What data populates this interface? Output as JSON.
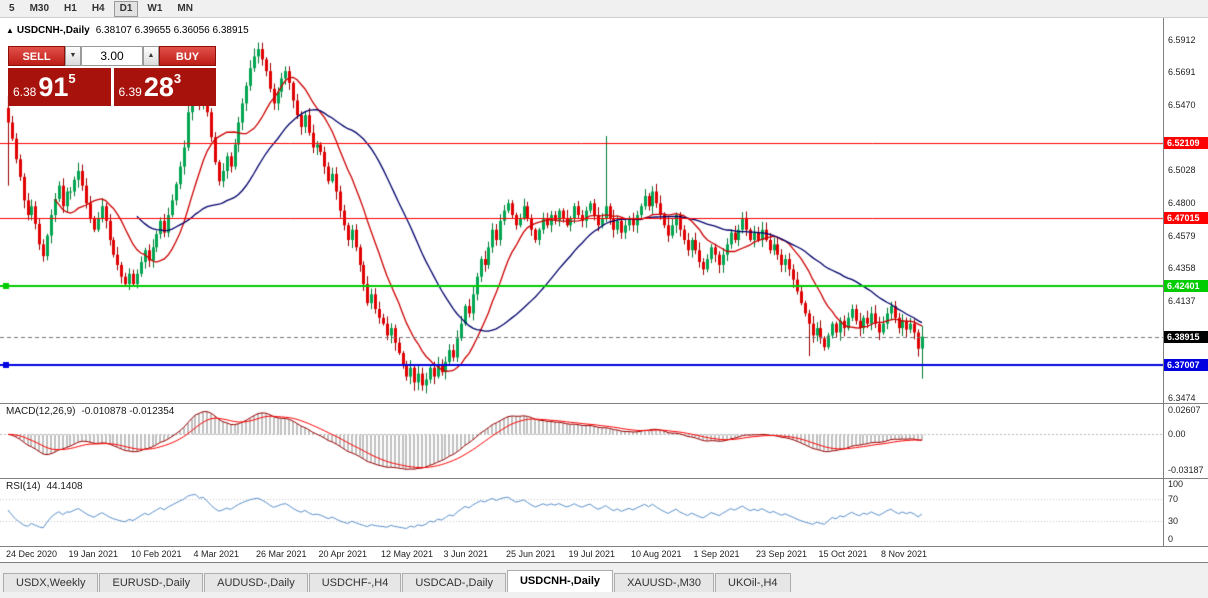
{
  "toolbar": {
    "timeframes": [
      "5",
      "M30",
      "H1",
      "H4",
      "D1",
      "W1",
      "MN"
    ],
    "active": "D1"
  },
  "icons": {
    "collapse_triangle": "▲",
    "spinner_down": "▼",
    "spinner_up": "▲"
  },
  "chart": {
    "symbol_label": "USDCNH-,Daily",
    "ohlc_label": "6.38107 6.39655 6.36056 6.38915",
    "trade_panel": {
      "sell_label": "SELL",
      "buy_label": "BUY",
      "volume": "3.00",
      "sell_price_small": "6.38",
      "sell_price_big": "91",
      "sell_price_sup": "5",
      "buy_price_small": "6.39",
      "buy_price_big": "28",
      "buy_price_sup": "3"
    },
    "price_axis": {
      "ticks": [
        {
          "label": "6.5912",
          "price": 6.5912
        },
        {
          "label": "6.5691",
          "price": 6.5691
        },
        {
          "label": "6.5470",
          "price": 6.547
        },
        {
          "label": "6.5028",
          "price": 6.5028
        },
        {
          "label": "6.4800",
          "price": 6.48
        },
        {
          "label": "6.4579",
          "price": 6.4579
        },
        {
          "label": "6.4358",
          "price": 6.4358
        },
        {
          "label": "6.4137",
          "price": 6.4137
        },
        {
          "label": "6.3474",
          "price": 6.3474
        }
      ]
    },
    "levels": [
      {
        "label": "6.52109",
        "price": 6.52109,
        "color": "#FF0000",
        "width": 1,
        "handle": false
      },
      {
        "label": "6.47015",
        "price": 6.47015,
        "color": "#FF0000",
        "width": 1,
        "handle": false
      },
      {
        "label": "6.42401",
        "price": 6.42401,
        "color": "#00CC00",
        "width": 2,
        "handle": true
      },
      {
        "label": "6.37007",
        "price": 6.37007,
        "color": "#0000E0",
        "width": 2,
        "handle": true
      }
    ],
    "current_price": {
      "label": "6.38915",
      "price": 6.38915,
      "color": "#000000"
    }
  },
  "macd": {
    "label": "MACD(12,26,9)",
    "values_label": "-0.010878 -0.012354",
    "axis": [
      "0.02607",
      "0.00",
      "-0.03187"
    ]
  },
  "rsi": {
    "label": "RSI(14)",
    "value_label": "44.1408",
    "axis": [
      "100",
      "70",
      "30",
      "0"
    ],
    "levels": [
      70,
      30
    ]
  },
  "tabs": [
    {
      "label": "USDX,Weekly",
      "active": false
    },
    {
      "label": "EURUSD-,Daily",
      "active": false
    },
    {
      "label": "AUDUSD-,Daily",
      "active": false
    },
    {
      "label": "USDCHF-,H4",
      "active": false
    },
    {
      "label": "USDCAD-,Daily",
      "active": false
    },
    {
      "label": "USDCNH-,Daily",
      "active": true
    },
    {
      "label": "XAUUSD-,M30",
      "active": false
    },
    {
      "label": "UKOil-,H4",
      "active": false
    }
  ],
  "chart_data": {
    "type": "candlestick",
    "symbol": "USDCNH",
    "timeframe": "Daily",
    "ylim": [
      6.3474,
      6.5912
    ],
    "x_labels": [
      "24 Dec 2020",
      "19 Jan 2021",
      "10 Feb 2021",
      "4 Mar 2021",
      "26 Mar 2021",
      "20 Apr 2021",
      "12 May 2021",
      "3 Jun 2021",
      "25 Jun 2021",
      "19 Jul 2021",
      "10 Aug 2021",
      "1 Sep 2021",
      "23 Sep 2021",
      "15 Oct 2021",
      "8 Nov 2021"
    ],
    "candles_per_label": 16,
    "first_open": 6.545,
    "closes": [
      6.535,
      6.524,
      6.51,
      6.498,
      6.482,
      6.472,
      6.478,
      6.466,
      6.452,
      6.444,
      6.458,
      6.472,
      6.483,
      6.492,
      6.478,
      6.488,
      6.488,
      6.496,
      6.502,
      6.492,
      6.48,
      6.47,
      6.462,
      6.47,
      6.478,
      6.468,
      6.455,
      6.445,
      6.438,
      6.43,
      6.425,
      6.432,
      6.425,
      6.432,
      6.44,
      6.448,
      6.441,
      6.45,
      6.459,
      6.468,
      6.46,
      6.472,
      6.482,
      6.493,
      6.505,
      6.518,
      6.542,
      6.556,
      6.56,
      6.548,
      6.556,
      6.542,
      6.525,
      6.508,
      6.495,
      6.502,
      6.512,
      6.505,
      6.52,
      6.535,
      6.548,
      6.56,
      6.572,
      6.58,
      6.585,
      6.578,
      6.57,
      6.558,
      6.548,
      6.556,
      6.565,
      6.57,
      6.562,
      6.55,
      6.54,
      6.532,
      6.54,
      6.528,
      6.518,
      6.52,
      6.515,
      6.505,
      6.495,
      6.5,
      6.488,
      6.475,
      6.465,
      6.455,
      6.462,
      6.45,
      6.438,
      6.425,
      6.412,
      6.418,
      6.408,
      6.402,
      6.398,
      6.39,
      6.395,
      6.385,
      6.378,
      6.37,
      6.362,
      6.368,
      6.358,
      6.364,
      6.356,
      6.36,
      6.368,
      6.362,
      6.37,
      6.365,
      6.372,
      6.38,
      6.375,
      6.388,
      6.398,
      6.41,
      6.405,
      6.418,
      6.43,
      6.442,
      6.438,
      6.45,
      6.462,
      6.455,
      6.468,
      6.475,
      6.48,
      6.472,
      6.465,
      6.47,
      6.478,
      6.47,
      6.462,
      6.455,
      6.462,
      6.47,
      6.465,
      6.472,
      6.468,
      6.475,
      6.47,
      6.465,
      6.47,
      6.478,
      6.472,
      6.468,
      6.475,
      6.48,
      6.472,
      6.465,
      6.47,
      6.478,
      6.47,
      6.462,
      6.468,
      6.46,
      6.465,
      6.47,
      6.465,
      6.472,
      6.478,
      6.485,
      6.478,
      6.488,
      6.48,
      6.472,
      6.465,
      6.458,
      6.465,
      6.472,
      6.462,
      6.455,
      6.448,
      6.455,
      6.448,
      6.44,
      6.435,
      6.442,
      6.45,
      6.445,
      6.438,
      6.445,
      6.452,
      6.46,
      6.455,
      6.462,
      6.47,
      6.462,
      6.455,
      6.46,
      6.455,
      6.462,
      6.455,
      6.448,
      6.452,
      6.445,
      6.438,
      6.442,
      6.435,
      6.428,
      6.42,
      6.412,
      6.405,
      6.398,
      6.39,
      6.395,
      6.388,
      6.382,
      6.39,
      6.398,
      6.392,
      6.4,
      6.395,
      6.402,
      6.408,
      6.4,
      6.395,
      6.402,
      6.398,
      6.405,
      6.398,
      6.392,
      6.398,
      6.405,
      6.41,
      6.402,
      6.395,
      6.4,
      6.394,
      6.398,
      6.392,
      6.381,
      6.38915
    ],
    "wick_overrides": {
      "0": {
        "h": 6.553,
        "l": 6.492
      },
      "64": {
        "h": 6.5895
      },
      "153": {
        "h": 6.5258
      },
      "205": {
        "l": 6.3759
      },
      "234": {
        "o": 6.38107,
        "h": 6.39655,
        "l": 6.36056,
        "c": 6.38915
      }
    },
    "last_candle_ohlc": {
      "o": 6.38107,
      "h": 6.39655,
      "l": 6.36056,
      "c": 6.38915
    },
    "ma": [
      {
        "period": 13,
        "color": "#CC0000"
      },
      {
        "period": 34,
        "color": "#00006B"
      }
    ],
    "macd": {
      "fast": 12,
      "slow": 26,
      "signal": 9,
      "main_value": -0.010878,
      "signal_value": -0.012354,
      "histogram_color": "#C0C0C0",
      "main_color": "#990000",
      "signal_color": "#FF0000"
    },
    "rsi": {
      "period": 14,
      "value": 44.1408,
      "color": "#5B8FC9"
    },
    "colors": {
      "up": "#00A651",
      "up_wick": "#007A32",
      "down": "#E00000",
      "down_wick": "#990000"
    }
  }
}
